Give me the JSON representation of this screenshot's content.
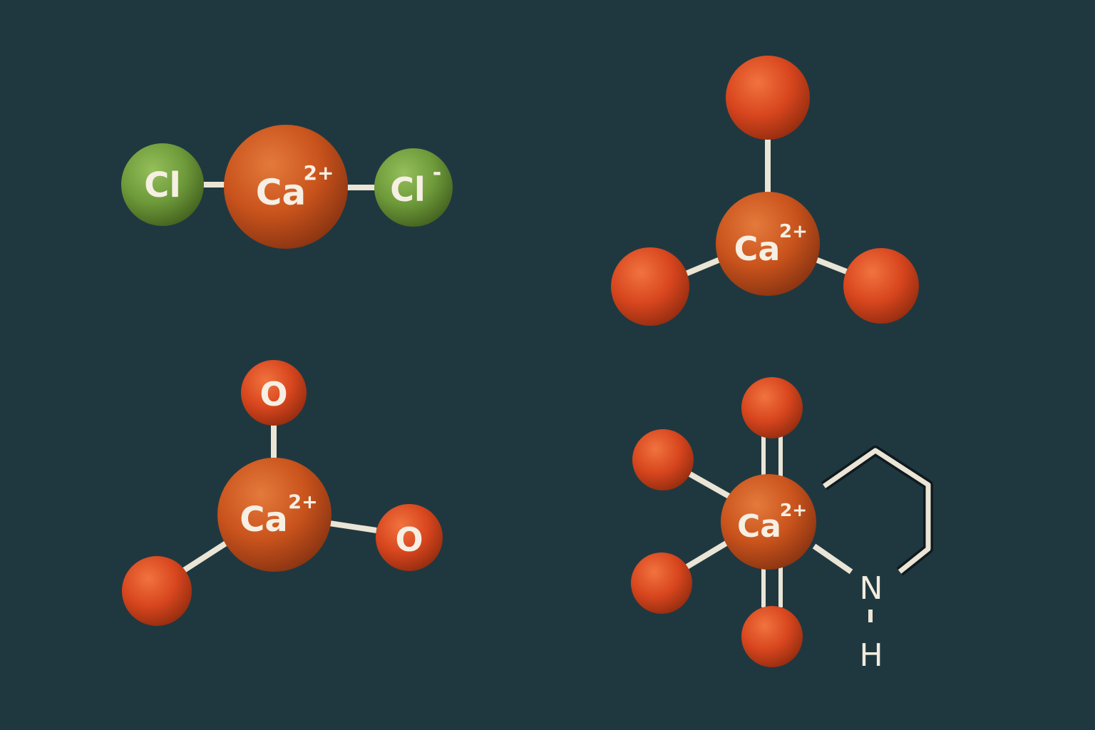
{
  "colors": {
    "background": "#1f3840",
    "calcium": "#c9531c",
    "oxygen": "#d8461e",
    "chlorine": "#6e9a3a",
    "bond": "#ebe5d6",
    "ring_outline": "#0f1a1f",
    "label": "#f6efe3"
  },
  "molecules": [
    {
      "name": "calcium-chloride",
      "center": {
        "symbol": "Ca",
        "charge": "2+"
      },
      "ligands": [
        {
          "symbol": "Cl",
          "charge": ""
        },
        {
          "symbol": "Cl",
          "charge": "-"
        }
      ]
    },
    {
      "name": "trigonal-calcium",
      "center": {
        "symbol": "Ca",
        "charge": "2+"
      },
      "ligands": [
        {
          "symbol": "",
          "charge": ""
        },
        {
          "symbol": "",
          "charge": ""
        },
        {
          "symbol": "",
          "charge": ""
        }
      ]
    },
    {
      "name": "calcium-oxide-complex",
      "center": {
        "symbol": "Ca",
        "charge": "2+"
      },
      "ligands": [
        {
          "symbol": "O",
          "charge": ""
        },
        {
          "symbol": "O",
          "charge": ""
        },
        {
          "symbol": "",
          "charge": ""
        }
      ]
    },
    {
      "name": "calcium-amine-complex",
      "center": {
        "symbol": "Ca",
        "charge": "2+"
      },
      "ligands": [
        {
          "symbol": "",
          "charge": ""
        },
        {
          "symbol": "",
          "charge": ""
        },
        {
          "symbol": "",
          "charge": ""
        },
        {
          "symbol": "",
          "charge": ""
        }
      ],
      "ring_labels": {
        "nitrogen": "N",
        "hydrogen": "H"
      }
    }
  ]
}
